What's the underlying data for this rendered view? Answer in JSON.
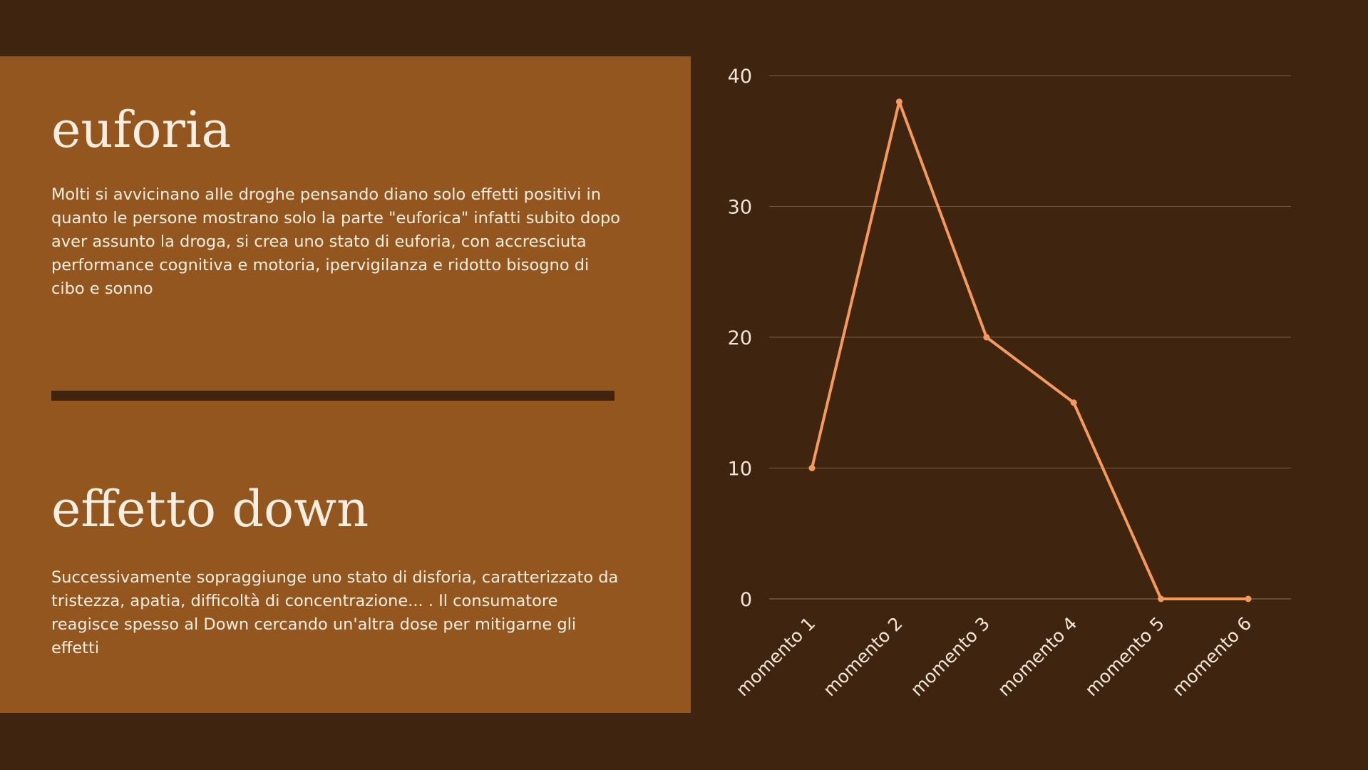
{
  "sections": [
    {
      "title": "euforia",
      "text": "Molti si avvicinano alle droghe pensando diano solo effetti positivi in quanto le persone mostrano solo la parte \"euforica\" infatti subito dopo aver assunto la droga, si crea uno stato di euforia, con accresciuta performance cognitiva e motoria, ipervigilanza e ridotto bisogno di cibo e sonno"
    },
    {
      "title": "effetto down",
      "text": "Successivamente sopraggiunge uno stato di disforia, caratterizzato da tristezza, apatia, difficoltà di concentrazione... . Il consumatore reagisce spesso al Down cercando un'altra dose per mitigarne gli effetti"
    }
  ],
  "colors": {
    "background": "#3f2410",
    "panel": "#93561f",
    "text": "#fbeee0",
    "line": "#f59a5e",
    "grid": "#7a5b45",
    "axis_text": "#f3e6d8"
  },
  "chart_data": {
    "type": "line",
    "categories": [
      "momento 1",
      "momento 2",
      "momento 3",
      "momento 4",
      "momento 5",
      "momento 6"
    ],
    "series": [
      {
        "values": [
          10,
          38,
          20,
          15,
          0,
          0
        ]
      }
    ],
    "yticks": [
      0,
      10,
      20,
      30,
      40
    ],
    "ylim": [
      0,
      40
    ],
    "grid": true,
    "legend": "none"
  }
}
